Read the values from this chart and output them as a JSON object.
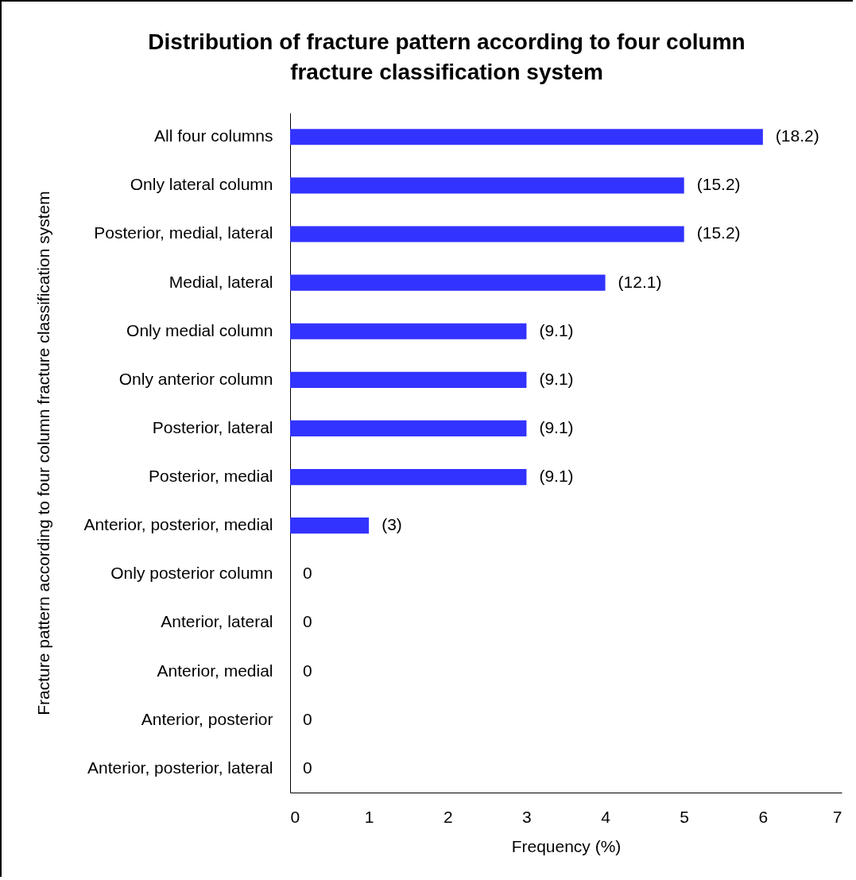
{
  "chart_data": {
    "type": "bar",
    "orientation": "horizontal",
    "title": "Distribution of fracture pattern according to four column fracture classification system",
    "xlabel": "Frequency (%)",
    "ylabel": "Fracture pattern according to four column fracture classification system",
    "categories": [
      "All four columns",
      "Only lateral column",
      "Posterior, medial, lateral",
      "Medial, lateral",
      "Only medial column",
      "Only anterior column",
      "Posterior, lateral",
      "Posterior, medial",
      "Anterior, posterior, medial",
      "Only posterior column",
      "Anterior, lateral",
      "Anterior, medial",
      "Anterior, posterior",
      "Anterior, posterior, lateral"
    ],
    "values": [
      6,
      5,
      5,
      4,
      3,
      3,
      3,
      3,
      1,
      0,
      0,
      0,
      0,
      0
    ],
    "annotations": [
      {
        "text": "(18.2)",
        "x": 6,
        "y": "All four columns"
      },
      {
        "text": "(15.2)",
        "x": 5,
        "y": "Only lateral column"
      },
      {
        "text": "(15.2)",
        "x": 5,
        "y": "Posterior, medial, lateral"
      },
      {
        "text": "(12.1)",
        "x": 4,
        "y": "Medial, lateral"
      },
      {
        "text": "(9.1)",
        "x": 3,
        "y": "Only medial column"
      },
      {
        "text": "(9.1)",
        "x": 3,
        "y": "Only anterior column"
      },
      {
        "text": "(9.1)",
        "x": 3,
        "y": "Posterior, lateral"
      },
      {
        "text": "(9.1)",
        "x": 3,
        "y": "Posterior, medial"
      },
      {
        "text": "(3)",
        "x": 1,
        "y": "Anterior, posterior, medial"
      },
      {
        "text": "0",
        "x": 0,
        "y": "Only posterior column"
      },
      {
        "text": "0",
        "x": 0,
        "y": "Anterior, lateral"
      },
      {
        "text": "0",
        "x": 0,
        "y": "Anterior, medial"
      },
      {
        "text": "0",
        "x": 0,
        "y": "Anterior, posterior"
      },
      {
        "text": "0",
        "x": 0,
        "y": "Anterior, posterior, lateral"
      }
    ],
    "color": "#3333ff",
    "xlim": [
      0,
      7
    ],
    "xticks": [
      0,
      1,
      2,
      3,
      4,
      5,
      6,
      7
    ],
    "grid": false
  }
}
